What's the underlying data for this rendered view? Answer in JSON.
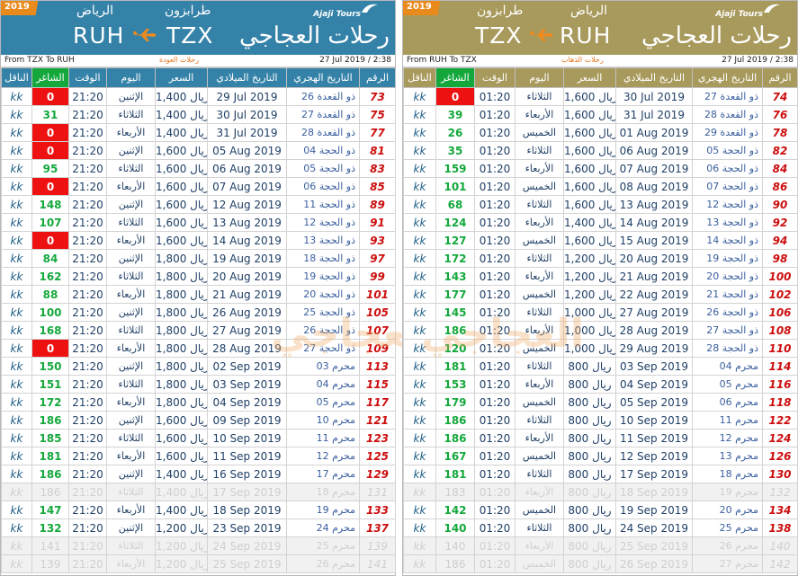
{
  "left": {
    "year": "2019",
    "city_from_ar": "طرابزون",
    "city_to_ar": "الرياض",
    "code_from": "TZX",
    "code_to": "RUH",
    "brand_en": "Ajaji Tours",
    "brand_ar": "رحلات العجاجي",
    "route": "From TZX To RUH",
    "trip_label": "رحلات العودة",
    "updated": "27 Jul 2019 / 2:38",
    "headers": {
      "carrier": "الناقل",
      "avail": "الشاغر",
      "time": "الوقت",
      "day": "اليوم",
      "price": "السعر",
      "greg": "التاريخ الميلادي",
      "hijri": "التاريخ الهجري",
      "num": "الرقم"
    },
    "rows": [
      {
        "carrier": "kk",
        "avail": "0",
        "time": "21:20",
        "day": "الإثنين",
        "price": "1,400 ريال",
        "greg": "29 Jul 2019",
        "hijri": "26 ذو القعدة",
        "num": "73"
      },
      {
        "carrier": "kk",
        "avail": "31",
        "time": "21:20",
        "day": "الثلاثاء",
        "price": "1,400 ريال",
        "greg": "30 Jul 2019",
        "hijri": "27 ذو القعدة",
        "num": "75"
      },
      {
        "carrier": "kk",
        "avail": "0",
        "time": "21:20",
        "day": "الأربعاء",
        "price": "1,400 ريال",
        "greg": "31 Jul 2019",
        "hijri": "28 ذو القعدة",
        "num": "77"
      },
      {
        "carrier": "kk",
        "avail": "0",
        "time": "21:20",
        "day": "الإثنين",
        "price": "1,600 ريال",
        "greg": "05 Aug 2019",
        "hijri": "04 ذو الحجة",
        "num": "81"
      },
      {
        "carrier": "kk",
        "avail": "95",
        "time": "21:20",
        "day": "الثلاثاء",
        "price": "1,600 ريال",
        "greg": "06 Aug 2019",
        "hijri": "05 ذو الحجة",
        "num": "83"
      },
      {
        "carrier": "kk",
        "avail": "0",
        "time": "21:20",
        "day": "الأربعاء",
        "price": "1,600 ريال",
        "greg": "07 Aug 2019",
        "hijri": "06 ذو الحجة",
        "num": "85"
      },
      {
        "carrier": "kk",
        "avail": "148",
        "time": "21:20",
        "day": "الإثنين",
        "price": "1,600 ريال",
        "greg": "12 Aug 2019",
        "hijri": "11 ذو الحجة",
        "num": "89"
      },
      {
        "carrier": "kk",
        "avail": "107",
        "time": "21:20",
        "day": "الثلاثاء",
        "price": "1,600 ريال",
        "greg": "13 Aug 2019",
        "hijri": "12 ذو الحجة",
        "num": "91"
      },
      {
        "carrier": "kk",
        "avail": "0",
        "time": "21:20",
        "day": "الأربعاء",
        "price": "1,600 ريال",
        "greg": "14 Aug 2019",
        "hijri": "13 ذو الحجة",
        "num": "93"
      },
      {
        "carrier": "kk",
        "avail": "84",
        "time": "21:20",
        "day": "الإثنين",
        "price": "1,800 ريال",
        "greg": "19 Aug 2019",
        "hijri": "18 ذو الحجة",
        "num": "97"
      },
      {
        "carrier": "kk",
        "avail": "162",
        "time": "21:20",
        "day": "الثلاثاء",
        "price": "1,800 ريال",
        "greg": "20 Aug 2019",
        "hijri": "19 ذو الحجة",
        "num": "99"
      },
      {
        "carrier": "kk",
        "avail": "88",
        "time": "21:20",
        "day": "الأربعاء",
        "price": "1,800 ريال",
        "greg": "21 Aug 2019",
        "hijri": "20 ذو الحجة",
        "num": "101"
      },
      {
        "carrier": "kk",
        "avail": "100",
        "time": "21:20",
        "day": "الإثنين",
        "price": "1,800 ريال",
        "greg": "26 Aug 2019",
        "hijri": "25 ذو الحجة",
        "num": "105"
      },
      {
        "carrier": "kk",
        "avail": "168",
        "time": "21:20",
        "day": "الثلاثاء",
        "price": "1,800 ريال",
        "greg": "27 Aug 2019",
        "hijri": "26 ذو الحجة",
        "num": "107"
      },
      {
        "carrier": "kk",
        "avail": "0",
        "time": "21:20",
        "day": "الأربعاء",
        "price": "1,800 ريال",
        "greg": "28 Aug 2019",
        "hijri": "27 ذو الحجة",
        "num": "109"
      },
      {
        "carrier": "kk",
        "avail": "150",
        "time": "21:20",
        "day": "الإثنين",
        "price": "1,800 ريال",
        "greg": "02 Sep 2019",
        "hijri": "03 محرم",
        "num": "113"
      },
      {
        "carrier": "kk",
        "avail": "151",
        "time": "21:20",
        "day": "الثلاثاء",
        "price": "1,800 ريال",
        "greg": "03 Sep 2019",
        "hijri": "04 محرم",
        "num": "115"
      },
      {
        "carrier": "kk",
        "avail": "172",
        "time": "21:20",
        "day": "الأربعاء",
        "price": "1,800 ريال",
        "greg": "04 Sep 2019",
        "hijri": "05 محرم",
        "num": "117"
      },
      {
        "carrier": "kk",
        "avail": "186",
        "time": "21:20",
        "day": "الإثنين",
        "price": "1,600 ريال",
        "greg": "09 Sep 2019",
        "hijri": "10 محرم",
        "num": "121"
      },
      {
        "carrier": "kk",
        "avail": "185",
        "time": "21:20",
        "day": "الثلاثاء",
        "price": "1,600 ريال",
        "greg": "10 Sep 2019",
        "hijri": "11 محرم",
        "num": "123"
      },
      {
        "carrier": "kk",
        "avail": "181",
        "time": "21:20",
        "day": "الأربعاء",
        "price": "1,600 ريال",
        "greg": "11 Sep 2019",
        "hijri": "12 محرم",
        "num": "125"
      },
      {
        "carrier": "kk",
        "avail": "186",
        "time": "21:20",
        "day": "الإثنين",
        "price": "1,400 ريال",
        "greg": "16 Sep 2019",
        "hijri": "17 محرم",
        "num": "129"
      },
      {
        "carrier": "kk",
        "avail": "186",
        "time": "21:20",
        "day": "الثلاثاء",
        "price": "1,400 ريال",
        "greg": "17 Sep 2019",
        "hijri": "18 محرم",
        "num": "131",
        "faded": true
      },
      {
        "carrier": "kk",
        "avail": "147",
        "time": "21:20",
        "day": "الأربعاء",
        "price": "1,400 ريال",
        "greg": "18 Sep 2019",
        "hijri": "19 محرم",
        "num": "133"
      },
      {
        "carrier": "kk",
        "avail": "132",
        "time": "21:20",
        "day": "الإثنين",
        "price": "1,200 ريال",
        "greg": "23 Sep 2019",
        "hijri": "24 محرم",
        "num": "137"
      },
      {
        "carrier": "kk",
        "avail": "141",
        "time": "21:20",
        "day": "الثلاثاء",
        "price": "1,200 ريال",
        "greg": "24 Sep 2019",
        "hijri": "25 محرم",
        "num": "139",
        "faded": true
      },
      {
        "carrier": "kk",
        "avail": "139",
        "time": "21:20",
        "day": "الأربعاء",
        "price": "1,200 ريال",
        "greg": "25 Sep 2019",
        "hijri": "26 محرم",
        "num": "141",
        "faded": true
      }
    ]
  },
  "right": {
    "year": "2019",
    "city_from_ar": "الرياض",
    "city_to_ar": "طرابزون",
    "code_from": "RUH",
    "code_to": "TZX",
    "brand_en": "Ajaji Tours",
    "brand_ar": "رحلات العجاجي",
    "route": "From RUH To TZX",
    "trip_label": "رحلات الذهاب",
    "updated": "27 Jul 2019 / 2:38",
    "headers": {
      "carrier": "الناقل",
      "avail": "الشاغر",
      "time": "الوقت",
      "day": "اليوم",
      "price": "السعر",
      "greg": "التاريخ الميلادي",
      "hijri": "التاريخ الهجري",
      "num": "الرقم"
    },
    "rows": [
      {
        "carrier": "kk",
        "avail": "0",
        "time": "01:20",
        "day": "الثلاثاء",
        "price": "1,600 ريال",
        "greg": "30 Jul 2019",
        "hijri": "27 ذو القعدة",
        "num": "74"
      },
      {
        "carrier": "kk",
        "avail": "39",
        "time": "01:20",
        "day": "الأربعاء",
        "price": "1,600 ريال",
        "greg": "31 Jul 2019",
        "hijri": "28 ذو القعدة",
        "num": "76"
      },
      {
        "carrier": "kk",
        "avail": "26",
        "time": "01:20",
        "day": "الخميس",
        "price": "1,600 ريال",
        "greg": "01 Aug 2019",
        "hijri": "29 ذو القعدة",
        "num": "78"
      },
      {
        "carrier": "kk",
        "avail": "35",
        "time": "01:20",
        "day": "الثلاثاء",
        "price": "1,600 ريال",
        "greg": "06 Aug 2019",
        "hijri": "05 ذو الحجة",
        "num": "82"
      },
      {
        "carrier": "kk",
        "avail": "159",
        "time": "01:20",
        "day": "الأربعاء",
        "price": "1,600 ريال",
        "greg": "07 Aug 2019",
        "hijri": "06 ذو الحجة",
        "num": "84"
      },
      {
        "carrier": "kk",
        "avail": "101",
        "time": "01:20",
        "day": "الخميس",
        "price": "1,600 ريال",
        "greg": "08 Aug 2019",
        "hijri": "07 ذو الحجة",
        "num": "86"
      },
      {
        "carrier": "kk",
        "avail": "68",
        "time": "01:20",
        "day": "الثلاثاء",
        "price": "1,600 ريال",
        "greg": "13 Aug 2019",
        "hijri": "12 ذو الحجة",
        "num": "90"
      },
      {
        "carrier": "kk",
        "avail": "124",
        "time": "01:20",
        "day": "الأربعاء",
        "price": "1,400 ريال",
        "greg": "14 Aug 2019",
        "hijri": "13 ذو الحجة",
        "num": "92"
      },
      {
        "carrier": "kk",
        "avail": "127",
        "time": "01:20",
        "day": "الخميس",
        "price": "1,600 ريال",
        "greg": "15 Aug 2019",
        "hijri": "14 ذو الحجة",
        "num": "94"
      },
      {
        "carrier": "kk",
        "avail": "172",
        "time": "01:20",
        "day": "الثلاثاء",
        "price": "1,200 ريال",
        "greg": "20 Aug 2019",
        "hijri": "19 ذو الحجة",
        "num": "98"
      },
      {
        "carrier": "kk",
        "avail": "143",
        "time": "01:20",
        "day": "الأربعاء",
        "price": "1,200 ريال",
        "greg": "21 Aug 2019",
        "hijri": "20 ذو الحجة",
        "num": "100"
      },
      {
        "carrier": "kk",
        "avail": "177",
        "time": "01:20",
        "day": "الخميس",
        "price": "1,200 ريال",
        "greg": "22 Aug 2019",
        "hijri": "21 ذو الحجة",
        "num": "102"
      },
      {
        "carrier": "kk",
        "avail": "145",
        "time": "01:20",
        "day": "الثلاثاء",
        "price": "1,000 ريال",
        "greg": "27 Aug 2019",
        "hijri": "26 ذو الحجة",
        "num": "106"
      },
      {
        "carrier": "kk",
        "avail": "186",
        "time": "01:20",
        "day": "الأربعاء",
        "price": "1,000 ريال",
        "greg": "28 Aug 2019",
        "hijri": "27 ذو الحجة",
        "num": "108"
      },
      {
        "carrier": "kk",
        "avail": "120",
        "time": "01:20",
        "day": "الخميس",
        "price": "1,000 ريال",
        "greg": "29 Aug 2019",
        "hijri": "28 ذو الحجة",
        "num": "110"
      },
      {
        "carrier": "kk",
        "avail": "181",
        "time": "01:20",
        "day": "الثلاثاء",
        "price": "800 ريال",
        "greg": "03 Sep 2019",
        "hijri": "04 محرم",
        "num": "114"
      },
      {
        "carrier": "kk",
        "avail": "153",
        "time": "01:20",
        "day": "الأربعاء",
        "price": "800 ريال",
        "greg": "04 Sep 2019",
        "hijri": "05 محرم",
        "num": "116"
      },
      {
        "carrier": "kk",
        "avail": "179",
        "time": "01:20",
        "day": "الخميس",
        "price": "800 ريال",
        "greg": "05 Sep 2019",
        "hijri": "06 محرم",
        "num": "118"
      },
      {
        "carrier": "kk",
        "avail": "186",
        "time": "01:20",
        "day": "الثلاثاء",
        "price": "800 ريال",
        "greg": "10 Sep 2019",
        "hijri": "11 محرم",
        "num": "122"
      },
      {
        "carrier": "kk",
        "avail": "186",
        "time": "01:20",
        "day": "الأربعاء",
        "price": "800 ريال",
        "greg": "11 Sep 2019",
        "hijri": "12 محرم",
        "num": "124"
      },
      {
        "carrier": "kk",
        "avail": "167",
        "time": "01:20",
        "day": "الخميس",
        "price": "800 ريال",
        "greg": "12 Sep 2019",
        "hijri": "13 محرم",
        "num": "126"
      },
      {
        "carrier": "kk",
        "avail": "181",
        "time": "01:20",
        "day": "الثلاثاء",
        "price": "800 ريال",
        "greg": "17 Sep 2019",
        "hijri": "18 محرم",
        "num": "130"
      },
      {
        "carrier": "kk",
        "avail": "183",
        "time": "01:20",
        "day": "الأربعاء",
        "price": "800 ريال",
        "greg": "18 Sep 2019",
        "hijri": "19 محرم",
        "num": "132",
        "faded": true
      },
      {
        "carrier": "kk",
        "avail": "142",
        "time": "01:20",
        "day": "الخميس",
        "price": "800 ريال",
        "greg": "19 Sep 2019",
        "hijri": "20 محرم",
        "num": "134"
      },
      {
        "carrier": "kk",
        "avail": "140",
        "time": "01:20",
        "day": "الثلاثاء",
        "price": "800 ريال",
        "greg": "24 Sep 2019",
        "hijri": "25 محرم",
        "num": "138"
      },
      {
        "carrier": "kk",
        "avail": "140",
        "time": "01:20",
        "day": "الأربعاء",
        "price": "800 ريال",
        "greg": "25 Sep 2019",
        "hijri": "26 محرم",
        "num": "140",
        "faded": true
      },
      {
        "carrier": "kk",
        "avail": "186",
        "time": "01:20",
        "day": "الخميس",
        "price": "800 ريال",
        "greg": "26 Sep 2019",
        "hijri": "27 محرم",
        "num": "142",
        "faded": true
      }
    ]
  },
  "watermark": "العجاجي",
  "colors": {
    "left_accent": "#3482a8",
    "right_accent": "#a89a5c",
    "available": "#14a83c",
    "full": "#ee1111",
    "flight_num": "#cc0e0e",
    "year_tag": "#e88a1c"
  }
}
